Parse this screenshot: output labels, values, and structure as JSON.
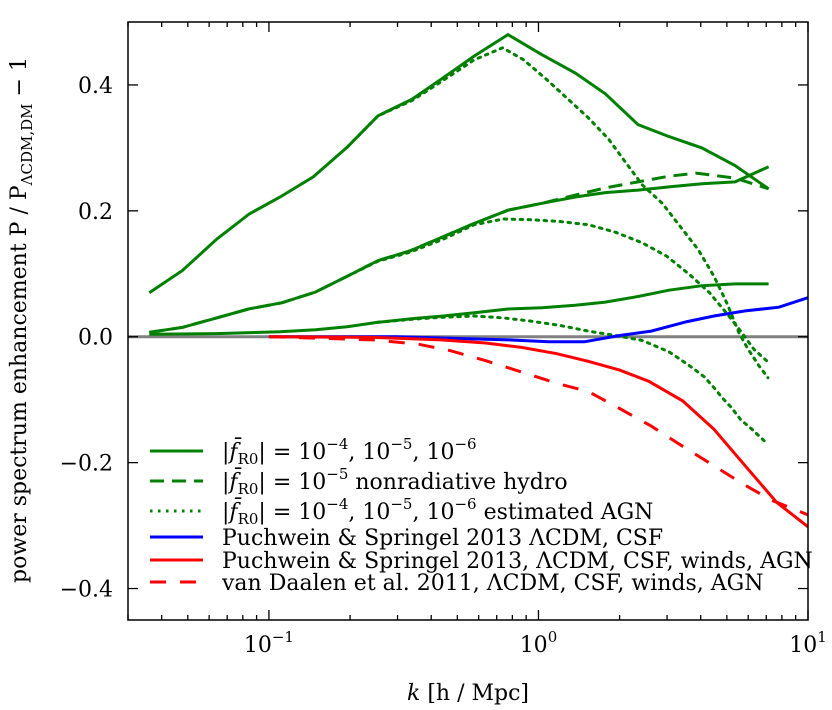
{
  "chart_data": {
    "type": "line",
    "xscale": "log",
    "xlim": [
      0.03,
      10
    ],
    "ylim": [
      -0.45,
      0.5
    ],
    "xlabel": {
      "var": "k",
      "rest": " [h / Mpc]"
    },
    "ylabel": {
      "main": "power spectrum enhancement P / P",
      "sub": "ΛCDM,DM",
      "tail": " − 1"
    },
    "xticks": [
      {
        "value": 0.1,
        "base": "10",
        "exp": "−1"
      },
      {
        "value": 1,
        "base": "10",
        "exp": "0"
      },
      {
        "value": 10,
        "base": "10",
        "exp": "1"
      }
    ],
    "yticks": [
      {
        "value": 0.4,
        "label": "0.4"
      },
      {
        "value": 0.2,
        "label": "0.2"
      },
      {
        "value": 0.0,
        "label": "0.0"
      },
      {
        "value": -0.2,
        "label": "−0.2"
      },
      {
        "value": -0.4,
        "label": "−0.4"
      }
    ],
    "zero_line": {
      "color": "#808080"
    },
    "legend_position": "lower-left",
    "series": [
      {
        "name": "fR0 1e-4",
        "color": "#008000",
        "style": "solid",
        "legend": 0,
        "x": [
          0.036,
          0.0477,
          0.064,
          0.0845,
          0.11,
          0.146,
          0.195,
          0.254,
          0.339,
          0.435,
          0.578,
          0.771,
          1.03,
          1.37,
          1.77,
          2.34,
          3.05,
          4.04,
          5.36,
          7.14
        ],
        "y": [
          0.07,
          0.105,
          0.155,
          0.195,
          0.222,
          0.254,
          0.301,
          0.351,
          0.377,
          0.409,
          0.446,
          0.48,
          0.448,
          0.419,
          0.386,
          0.337,
          0.318,
          0.3,
          0.272,
          0.235
        ]
      },
      {
        "name": "fR0 1e-5",
        "color": "#008000",
        "style": "solid",
        "legend": 0,
        "x": [
          0.036,
          0.0479,
          0.064,
          0.084,
          0.112,
          0.149,
          0.195,
          0.254,
          0.332,
          0.443,
          0.578,
          0.771,
          1.03,
          1.37,
          1.77,
          2.34,
          3.05,
          4.04,
          5.36,
          7.14
        ],
        "y": [
          0.007,
          0.015,
          0.03,
          0.044,
          0.054,
          0.071,
          0.096,
          0.121,
          0.136,
          0.159,
          0.18,
          0.201,
          0.212,
          0.222,
          0.229,
          0.233,
          0.238,
          0.243,
          0.246,
          0.27
        ]
      },
      {
        "name": "fR0 1e-6",
        "color": "#008000",
        "style": "solid",
        "legend": 0,
        "x": [
          0.036,
          0.064,
          0.11,
          0.149,
          0.195,
          0.254,
          0.345,
          0.443,
          0.578,
          0.771,
          1.03,
          1.37,
          1.77,
          2.34,
          3.05,
          4.04,
          5.36,
          7.14
        ],
        "y": [
          0.004,
          0.005,
          0.008,
          0.011,
          0.016,
          0.023,
          0.029,
          0.033,
          0.038,
          0.044,
          0.046,
          0.05,
          0.055,
          0.064,
          0.074,
          0.081,
          0.084,
          0.084
        ]
      },
      {
        "name": "fR0 1e-5 nonradiative",
        "color": "#008000",
        "style": "dashed",
        "legend": 1,
        "x": [
          0.036,
          0.0479,
          0.064,
          0.084,
          0.112,
          0.149,
          0.195,
          0.254,
          0.332,
          0.443,
          0.578,
          0.771,
          1.03,
          1.37,
          1.79,
          2.34,
          3.05,
          3.84,
          5.36,
          7.14
        ],
        "y": [
          0.007,
          0.015,
          0.03,
          0.044,
          0.054,
          0.071,
          0.096,
          0.121,
          0.136,
          0.159,
          0.18,
          0.201,
          0.212,
          0.225,
          0.237,
          0.246,
          0.255,
          0.26,
          0.252,
          0.235
        ]
      },
      {
        "name": "fR0 1e-4 AGN",
        "color": "#008000",
        "style": "dotted",
        "legend": 2,
        "x": [
          0.195,
          0.254,
          0.339,
          0.435,
          0.578,
          0.736,
          0.881,
          1.07,
          1.29,
          1.53,
          1.82,
          2.08,
          2.43,
          2.88,
          3.36,
          3.92,
          4.48,
          5.02,
          5.53,
          5.94,
          6.55,
          7.1
        ],
        "y": [
          0.301,
          0.351,
          0.375,
          0.405,
          0.44,
          0.459,
          0.44,
          0.409,
          0.377,
          0.348,
          0.314,
          0.28,
          0.241,
          0.212,
          0.175,
          0.138,
          0.096,
          0.052,
          0.007,
          -0.017,
          -0.045,
          -0.065
        ]
      },
      {
        "name": "fR0 1e-5 AGN",
        "color": "#008000",
        "style": "dotted",
        "legend": 2,
        "x": [
          0.195,
          0.254,
          0.332,
          0.443,
          0.578,
          0.742,
          0.933,
          1.2,
          1.53,
          1.93,
          2.43,
          2.99,
          3.63,
          4.31,
          5.02,
          5.6,
          6.3,
          7.1
        ],
        "y": [
          0.096,
          0.12,
          0.134,
          0.155,
          0.178,
          0.187,
          0.186,
          0.183,
          0.178,
          0.166,
          0.149,
          0.128,
          0.099,
          0.07,
          0.036,
          0.01,
          -0.02,
          -0.04
        ]
      },
      {
        "name": "fR0 1e-6 AGN",
        "color": "#008000",
        "style": "dotted",
        "legend": 2,
        "x": [
          0.254,
          0.345,
          0.443,
          0.578,
          0.742,
          0.93,
          1.2,
          1.53,
          1.93,
          2.43,
          3.05,
          3.36,
          3.77,
          4.13,
          4.46,
          4.83,
          5.21,
          5.63,
          6.2,
          6.9
        ],
        "y": [
          0.023,
          0.028,
          0.031,
          0.033,
          0.03,
          0.025,
          0.018,
          0.009,
          0.002,
          -0.006,
          -0.024,
          -0.036,
          -0.051,
          -0.064,
          -0.08,
          -0.098,
          -0.113,
          -0.132,
          -0.147,
          -0.166
        ]
      },
      {
        "name": "Puchwein & Springel 2013 CSF",
        "color": "#0000ff",
        "style": "solid",
        "legend": 3,
        "x": [
          0.1,
          0.296,
          0.771,
          1.09,
          1.48,
          2.0,
          2.62,
          3.56,
          4.48,
          5.85,
          7.8,
          10
        ],
        "y": [
          0,
          0,
          -0.005,
          -0.008,
          -0.008,
          0.002,
          0.009,
          0.024,
          0.033,
          0.041,
          0.047,
          0.062
        ]
      },
      {
        "name": "Puchwein & Springel 2013 full",
        "color": "#ff0000",
        "style": "solid",
        "legend": 4,
        "x": [
          0.101,
          0.245,
          0.435,
          0.637,
          0.865,
          1.17,
          1.53,
          2.0,
          2.57,
          3.43,
          4.48,
          5.85,
          7.65,
          10
        ],
        "y": [
          0,
          -0.001,
          -0.005,
          -0.01,
          -0.017,
          -0.027,
          -0.039,
          -0.053,
          -0.071,
          -0.102,
          -0.147,
          -0.205,
          -0.263,
          -0.302
        ]
      },
      {
        "name": "van Daalen et al. 2011",
        "color": "#ff0000",
        "style": "dashed-wide",
        "legend": 5,
        "x": [
          0.1,
          0.245,
          0.36,
          0.47,
          0.637,
          0.865,
          1.17,
          1.53,
          2.0,
          2.62,
          3.43,
          4.48,
          5.85,
          7.35,
          10
        ],
        "y": [
          0,
          -0.005,
          -0.012,
          -0.022,
          -0.038,
          -0.056,
          -0.074,
          -0.087,
          -0.114,
          -0.142,
          -0.174,
          -0.205,
          -0.236,
          -0.26,
          -0.283
        ]
      }
    ],
    "legend": [
      {
        "color": "#008000",
        "style": "solid",
        "parts": [
          [
            "t",
            "|"
          ],
          [
            "i",
            "f̄"
          ],
          [
            "sub",
            "R0"
          ],
          [
            "t",
            "| = 10"
          ],
          [
            "sup",
            "−4"
          ],
          [
            "t",
            ", 10"
          ],
          [
            "sup",
            "−5"
          ],
          [
            "t",
            ", 10"
          ],
          [
            "sup",
            "−6"
          ]
        ]
      },
      {
        "color": "#008000",
        "style": "dashed",
        "parts": [
          [
            "t",
            "|"
          ],
          [
            "i",
            "f̄"
          ],
          [
            "sub",
            "R0"
          ],
          [
            "t",
            "| = 10"
          ],
          [
            "sup",
            "−5"
          ],
          [
            "t",
            " nonradiative hydro"
          ]
        ]
      },
      {
        "color": "#008000",
        "style": "dotted",
        "parts": [
          [
            "t",
            "|"
          ],
          [
            "i",
            "f̄"
          ],
          [
            "sub",
            "R0"
          ],
          [
            "t",
            "| = 10"
          ],
          [
            "sup",
            "−4"
          ],
          [
            "t",
            ", 10"
          ],
          [
            "sup",
            "−5"
          ],
          [
            "t",
            ", 10"
          ],
          [
            "sup",
            "−6"
          ],
          [
            "t",
            " estimated AGN"
          ]
        ]
      },
      {
        "color": "#0000ff",
        "style": "solid",
        "parts": [
          [
            "t",
            "Puchwein & Springel 2013 ΛCDM, CSF"
          ]
        ]
      },
      {
        "color": "#ff0000",
        "style": "solid",
        "parts": [
          [
            "t",
            "Puchwein & Springel 2013, ΛCDM, CSF, winds, AGN"
          ]
        ]
      },
      {
        "color": "#ff0000",
        "style": "dashed-wide",
        "parts": [
          [
            "t",
            "van Daalen et al. 2011, ΛCDM, CSF, winds, AGN"
          ]
        ]
      }
    ]
  }
}
